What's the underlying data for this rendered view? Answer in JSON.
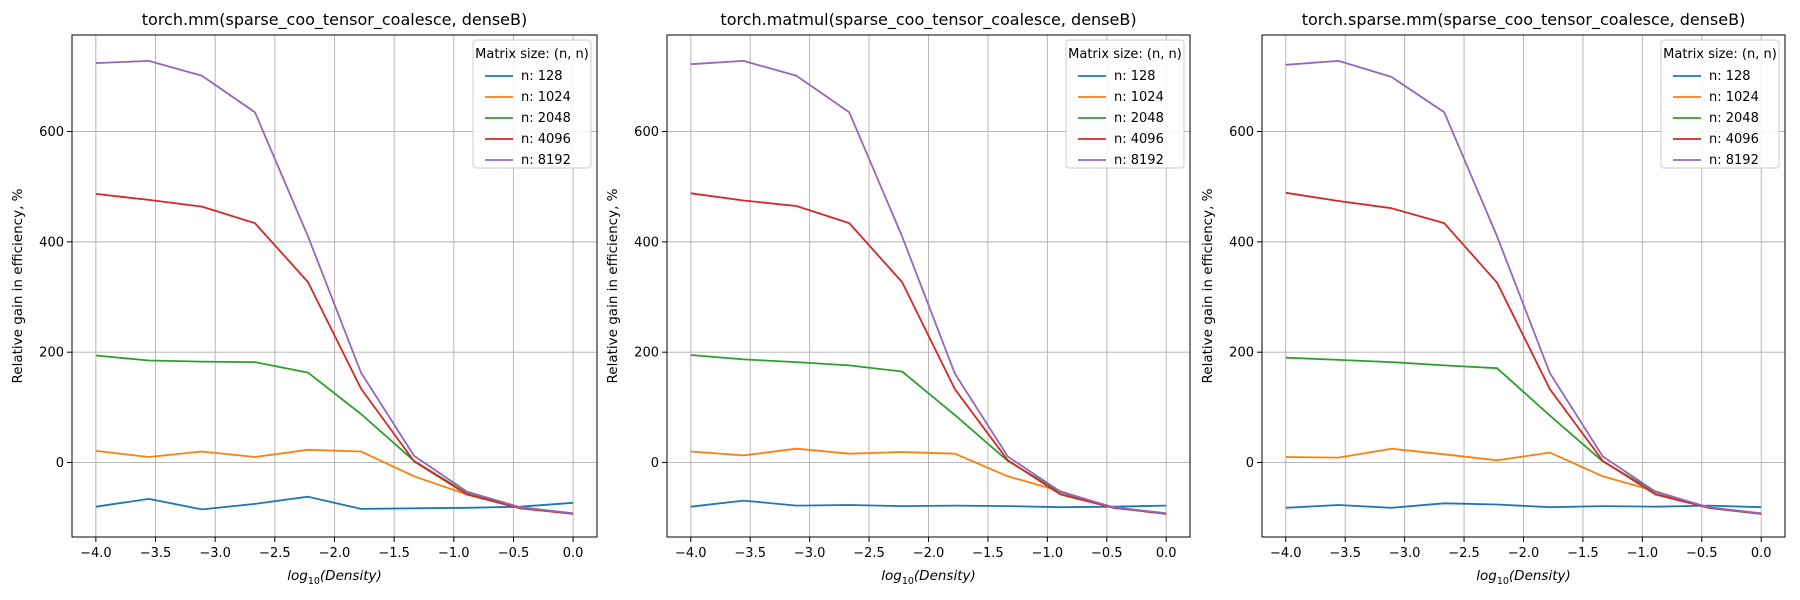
{
  "chart_data": [
    {
      "type": "line",
      "title": "torch.mm(sparse_coo_tensor_coalesce, denseB)",
      "xlabel_prefix": "log",
      "xlabel_sub": "10",
      "xlabel_paren": "(Density)",
      "ylabel": "Relative gain in efficiency, %",
      "legend_title": "Matrix size: (n, n)",
      "legend_position": "top-right",
      "grid": true,
      "xlim": [
        -4.2,
        0.2
      ],
      "ylim": [
        -135,
        775
      ],
      "xticks": [
        -4.0,
        -3.5,
        -3.0,
        -2.5,
        -2.0,
        -1.5,
        -1.0,
        -0.5,
        0.0
      ],
      "xtick_labels": [
        "−4.0",
        "−3.5",
        "−3.0",
        "−2.5",
        "−2.0",
        "−1.5",
        "−1.0",
        "−0.5",
        "0.0"
      ],
      "yticks": [
        0,
        200,
        400,
        600
      ],
      "ytick_labels": [
        "0",
        "200",
        "400",
        "600"
      ],
      "x": [
        -4.0,
        -3.556,
        -3.111,
        -2.667,
        -2.222,
        -1.778,
        -1.333,
        -0.889,
        -0.444,
        0.0
      ],
      "series": [
        {
          "name": "n: 128",
          "color": "#1f77b4",
          "values": [
            -80,
            -66,
            -85,
            -75,
            -62,
            -84,
            -83,
            -82,
            -80,
            -73
          ]
        },
        {
          "name": "n: 1024",
          "color": "#ff7f0e",
          "values": [
            21,
            10,
            20,
            10,
            23,
            20,
            -25,
            -58,
            -82,
            -92
          ]
        },
        {
          "name": "n: 2048",
          "color": "#2ca02c",
          "values": [
            194,
            185,
            183,
            182,
            163,
            88,
            3,
            -56,
            -82,
            -93
          ]
        },
        {
          "name": "n: 4096",
          "color": "#d62728",
          "values": [
            487,
            476,
            464,
            434,
            327,
            134,
            2,
            -58,
            -83,
            -93
          ]
        },
        {
          "name": "n: 8192",
          "color": "#9467bd",
          "values": [
            724,
            728,
            701,
            635,
            410,
            163,
            12,
            -53,
            -81,
            -92
          ]
        }
      ]
    },
    {
      "type": "line",
      "title": "torch.matmul(sparse_coo_tensor_coalesce, denseB)",
      "xlabel_prefix": "log",
      "xlabel_sub": "10",
      "xlabel_paren": "(Density)",
      "ylabel": "Relative gain in efficiency, %",
      "legend_title": "Matrix size: (n, n)",
      "legend_position": "top-right",
      "grid": true,
      "xlim": [
        -4.2,
        0.2
      ],
      "ylim": [
        -135,
        775
      ],
      "xticks": [
        -4.0,
        -3.5,
        -3.0,
        -2.5,
        -2.0,
        -1.5,
        -1.0,
        -0.5,
        0.0
      ],
      "xtick_labels": [
        "−4.0",
        "−3.5",
        "−3.0",
        "−2.5",
        "−2.0",
        "−1.5",
        "−1.0",
        "−0.5",
        "0.0"
      ],
      "yticks": [
        0,
        200,
        400,
        600
      ],
      "ytick_labels": [
        "0",
        "200",
        "400",
        "600"
      ],
      "x": [
        -4.0,
        -3.556,
        -3.111,
        -2.667,
        -2.222,
        -1.778,
        -1.333,
        -0.889,
        -0.444,
        0.0
      ],
      "series": [
        {
          "name": "n: 128",
          "color": "#1f77b4",
          "values": [
            -80,
            -69,
            -78,
            -77,
            -79,
            -78,
            -79,
            -81,
            -80,
            -78
          ]
        },
        {
          "name": "n: 1024",
          "color": "#ff7f0e",
          "values": [
            20,
            13,
            25,
            16,
            19,
            16,
            -25,
            -52,
            -82,
            -92
          ]
        },
        {
          "name": "n: 2048",
          "color": "#2ca02c",
          "values": [
            195,
            187,
            182,
            176,
            165,
            86,
            3,
            -54,
            -82,
            -93
          ]
        },
        {
          "name": "n: 4096",
          "color": "#d62728",
          "values": [
            488,
            475,
            465,
            434,
            327,
            133,
            4,
            -58,
            -82,
            -93
          ]
        },
        {
          "name": "n: 8192",
          "color": "#9467bd",
          "values": [
            722,
            728,
            701,
            635,
            410,
            161,
            11,
            -53,
            -81,
            -92
          ]
        }
      ]
    },
    {
      "type": "line",
      "title": "torch.sparse.mm(sparse_coo_tensor_coalesce, denseB)",
      "xlabel_prefix": "log",
      "xlabel_sub": "10",
      "xlabel_paren": "(Density)",
      "ylabel": "Relative gain in efficiency, %",
      "legend_title": "Matrix size: (n, n)",
      "legend_position": "top-right",
      "grid": true,
      "xlim": [
        -4.2,
        0.2
      ],
      "ylim": [
        -135,
        775
      ],
      "xticks": [
        -4.0,
        -3.5,
        -3.0,
        -2.5,
        -2.0,
        -1.5,
        -1.0,
        -0.5,
        0.0
      ],
      "xtick_labels": [
        "−4.0",
        "−3.5",
        "−3.0",
        "−2.5",
        "−2.0",
        "−1.5",
        "−1.0",
        "−0.5",
        "0.0"
      ],
      "yticks": [
        0,
        200,
        400,
        600
      ],
      "ytick_labels": [
        "0",
        "200",
        "400",
        "600"
      ],
      "x": [
        -4.0,
        -3.556,
        -3.111,
        -2.667,
        -2.222,
        -1.778,
        -1.333,
        -0.889,
        -0.444,
        0.0
      ],
      "series": [
        {
          "name": "n: 128",
          "color": "#1f77b4",
          "values": [
            -82,
            -77,
            -82,
            -74,
            -76,
            -81,
            -79,
            -80,
            -78,
            -81
          ]
        },
        {
          "name": "n: 1024",
          "color": "#ff7f0e",
          "values": [
            10,
            9,
            25,
            15,
            4,
            18,
            -25,
            -52,
            -82,
            -92
          ]
        },
        {
          "name": "n: 2048",
          "color": "#2ca02c",
          "values": [
            190,
            186,
            182,
            176,
            171,
            85,
            2,
            -54,
            -82,
            -93
          ]
        },
        {
          "name": "n: 4096",
          "color": "#d62728",
          "values": [
            489,
            474,
            461,
            434,
            326,
            133,
            3,
            -58,
            -82,
            -93
          ]
        },
        {
          "name": "n: 8192",
          "color": "#9467bd",
          "values": [
            721,
            728,
            699,
            635,
            410,
            162,
            11,
            -53,
            -81,
            -92
          ]
        }
      ]
    }
  ]
}
